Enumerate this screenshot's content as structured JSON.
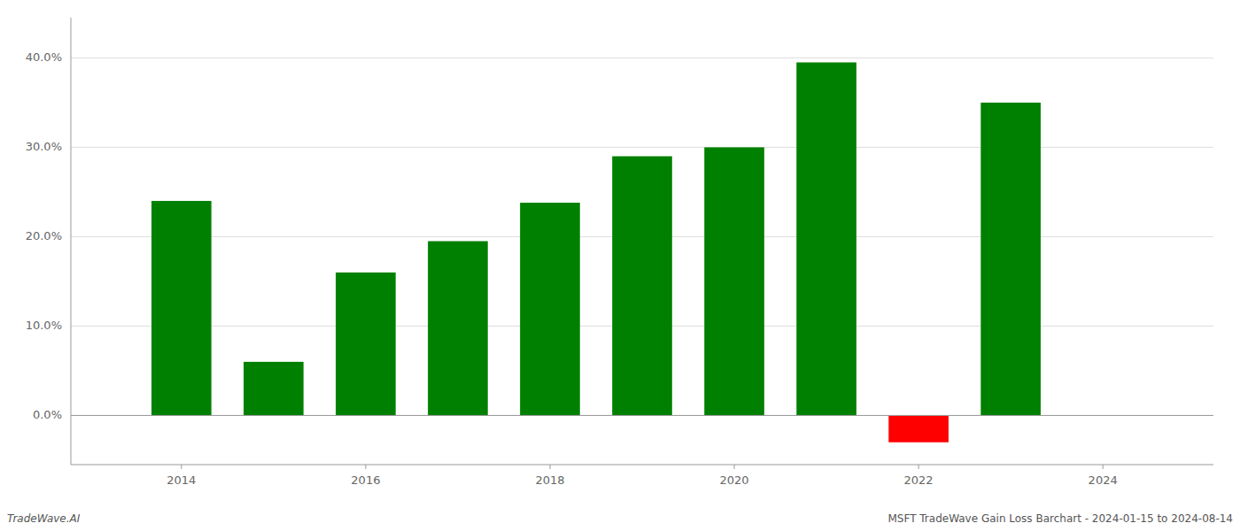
{
  "chart_data": {
    "type": "bar",
    "x": [
      2014,
      2015,
      2016,
      2017,
      2018,
      2019,
      2020,
      2021,
      2022,
      2023
    ],
    "values": [
      0.24,
      0.06,
      0.16,
      0.195,
      0.238,
      0.29,
      0.3,
      0.395,
      -0.03,
      0.35
    ],
    "colors": [
      "#008000",
      "#008000",
      "#008000",
      "#008000",
      "#008000",
      "#008000",
      "#008000",
      "#008000",
      "#ff0000",
      "#008000"
    ],
    "ylim": [
      -0.055,
      0.445
    ],
    "yticks": [
      {
        "value": 0.0,
        "label": "0.0%"
      },
      {
        "value": 0.1,
        "label": "10.0%"
      },
      {
        "value": 0.2,
        "label": "20.0%"
      },
      {
        "value": 0.3,
        "label": "30.0%"
      },
      {
        "value": 0.4,
        "label": "40.0%"
      }
    ],
    "xlim": [
      2012.8,
      2025.2
    ],
    "xticks": [
      2014,
      2016,
      2018,
      2020,
      2022,
      2024
    ],
    "grid": true,
    "annotations": [
      "TradeWave.AI",
      "MSFT TradeWave Gain Loss Barchart - 2024-01-15 to 2024-08-14"
    ]
  }
}
